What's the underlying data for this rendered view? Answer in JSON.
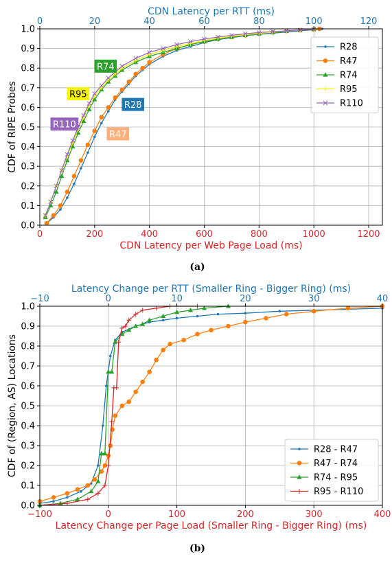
{
  "colors": {
    "blue": "#1f77b4",
    "orange": "#ff7f0e",
    "green": "#2ca02c",
    "yellow": "#f5f500",
    "purple": "#9467bd",
    "red": "#d62728",
    "lightorange": "#ffb07a",
    "axis_bottom_text": "#d62728",
    "axis_top_text": "#1f77b4"
  },
  "panels": [
    {
      "caption": "(a)"
    },
    {
      "caption": "(b)"
    }
  ],
  "chart_data": [
    {
      "type": "line",
      "xlabel": "CDN Latency per Web Page Load (ms)",
      "x2label": "CDN Latency per RTT (ms)",
      "ylabel": "CDF of RIPE Probes",
      "xlim": [
        0,
        1250
      ],
      "x2lim": [
        0,
        125
      ],
      "ylim": [
        0,
        1.0
      ],
      "xticks": [
        "0",
        "200",
        "400",
        "600",
        "800",
        "1000",
        "1200"
      ],
      "x2ticks": [
        "0",
        "20",
        "40",
        "60",
        "80",
        "100",
        "120"
      ],
      "yticks": [
        "0.0",
        "0.1",
        "0.2",
        "0.3",
        "0.4",
        "0.5",
        "0.6",
        "0.7",
        "0.8",
        "0.9",
        "1.0"
      ],
      "grid": true,
      "legend": "right",
      "series": [
        {
          "name": "R28",
          "color": "#1f77b4",
          "marker": "dot",
          "points": [
            [
              25,
              0.01
            ],
            [
              50,
              0.04
            ],
            [
              75,
              0.08
            ],
            [
              100,
              0.14
            ],
            [
              125,
              0.21
            ],
            [
              150,
              0.29
            ],
            [
              175,
              0.37
            ],
            [
              200,
              0.45
            ],
            [
              225,
              0.52
            ],
            [
              250,
              0.58
            ],
            [
              275,
              0.64
            ],
            [
              300,
              0.68
            ],
            [
              325,
              0.72
            ],
            [
              350,
              0.76
            ],
            [
              375,
              0.79
            ],
            [
              400,
              0.82
            ],
            [
              450,
              0.86
            ],
            [
              500,
              0.89
            ],
            [
              550,
              0.91
            ],
            [
              600,
              0.93
            ],
            [
              650,
              0.945
            ],
            [
              700,
              0.955
            ],
            [
              750,
              0.965
            ],
            [
              800,
              0.972
            ],
            [
              850,
              0.978
            ],
            [
              900,
              0.984
            ],
            [
              950,
              0.99
            ],
            [
              1000,
              0.995
            ],
            [
              1030,
              1.0
            ]
          ]
        },
        {
          "name": "R47",
          "color": "#ff7f0e",
          "marker": "circle",
          "points": [
            [
              25,
              0.01
            ],
            [
              50,
              0.05
            ],
            [
              75,
              0.1
            ],
            [
              100,
              0.17
            ],
            [
              125,
              0.25
            ],
            [
              150,
              0.33
            ],
            [
              175,
              0.41
            ],
            [
              200,
              0.48
            ],
            [
              225,
              0.55
            ],
            [
              250,
              0.6
            ],
            [
              275,
              0.65
            ],
            [
              300,
              0.69
            ],
            [
              325,
              0.73
            ],
            [
              350,
              0.77
            ],
            [
              375,
              0.8
            ],
            [
              400,
              0.83
            ],
            [
              450,
              0.87
            ],
            [
              500,
              0.9
            ],
            [
              550,
              0.92
            ],
            [
              600,
              0.935
            ],
            [
              650,
              0.948
            ],
            [
              700,
              0.958
            ],
            [
              750,
              0.967
            ],
            [
              800,
              0.975
            ],
            [
              850,
              0.982
            ],
            [
              900,
              0.988
            ],
            [
              950,
              0.993
            ],
            [
              1000,
              0.997
            ],
            [
              1020,
              1.0
            ]
          ]
        },
        {
          "name": "R74",
          "color": "#2ca02c",
          "marker": "triangle",
          "points": [
            [
              20,
              0.04
            ],
            [
              40,
              0.1
            ],
            [
              60,
              0.17
            ],
            [
              80,
              0.25
            ],
            [
              100,
              0.33
            ],
            [
              120,
              0.4
            ],
            [
              140,
              0.47
            ],
            [
              160,
              0.53
            ],
            [
              180,
              0.59
            ],
            [
              200,
              0.64
            ],
            [
              225,
              0.69
            ],
            [
              250,
              0.73
            ],
            [
              275,
              0.76
            ],
            [
              300,
              0.79
            ],
            [
              350,
              0.83
            ],
            [
              400,
              0.86
            ],
            [
              450,
              0.88
            ],
            [
              500,
              0.9
            ],
            [
              550,
              0.92
            ],
            [
              600,
              0.935
            ],
            [
              650,
              0.948
            ],
            [
              700,
              0.958
            ],
            [
              750,
              0.967
            ],
            [
              800,
              0.975
            ],
            [
              850,
              0.982
            ],
            [
              900,
              0.988
            ],
            [
              950,
              0.993
            ],
            [
              1000,
              0.997
            ]
          ]
        },
        {
          "name": "R95",
          "color": "#f5f500",
          "marker": "plus",
          "points": [
            [
              20,
              0.05
            ],
            [
              40,
              0.12
            ],
            [
              60,
              0.2
            ],
            [
              80,
              0.28
            ],
            [
              100,
              0.35
            ],
            [
              120,
              0.42
            ],
            [
              140,
              0.49
            ],
            [
              160,
              0.55
            ],
            [
              180,
              0.61
            ],
            [
              200,
              0.66
            ],
            [
              225,
              0.7
            ],
            [
              250,
              0.74
            ],
            [
              275,
              0.77
            ],
            [
              300,
              0.8
            ],
            [
              350,
              0.84
            ],
            [
              400,
              0.87
            ],
            [
              450,
              0.89
            ],
            [
              500,
              0.91
            ],
            [
              550,
              0.925
            ],
            [
              600,
              0.94
            ],
            [
              650,
              0.952
            ],
            [
              700,
              0.962
            ],
            [
              750,
              0.97
            ],
            [
              800,
              0.977
            ],
            [
              850,
              0.983
            ],
            [
              900,
              0.989
            ],
            [
              950,
              0.994
            ],
            [
              1000,
              0.998
            ]
          ]
        },
        {
          "name": "R110",
          "color": "#9467bd",
          "marker": "x",
          "points": [
            [
              20,
              0.05
            ],
            [
              40,
              0.12
            ],
            [
              60,
              0.2
            ],
            [
              80,
              0.28
            ],
            [
              100,
              0.36
            ],
            [
              120,
              0.43
            ],
            [
              140,
              0.5
            ],
            [
              160,
              0.56
            ],
            [
              180,
              0.62
            ],
            [
              200,
              0.67
            ],
            [
              225,
              0.71
            ],
            [
              250,
              0.75
            ],
            [
              275,
              0.78
            ],
            [
              300,
              0.81
            ],
            [
              350,
              0.85
            ],
            [
              400,
              0.88
            ],
            [
              450,
              0.9
            ],
            [
              500,
              0.92
            ],
            [
              550,
              0.935
            ],
            [
              600,
              0.948
            ],
            [
              650,
              0.958
            ],
            [
              700,
              0.967
            ],
            [
              750,
              0.975
            ],
            [
              800,
              0.981
            ],
            [
              850,
              0.986
            ],
            [
              900,
              0.99
            ],
            [
              950,
              0.994
            ],
            [
              1000,
              0.998
            ]
          ]
        }
      ],
      "annotations": [
        {
          "text": "R74",
          "x": 240,
          "y": 0.81,
          "bg": "#2ca02c",
          "fg": "#ffffff"
        },
        {
          "text": "R95",
          "x": 140,
          "y": 0.67,
          "bg": "#f5f500",
          "fg": "#000000"
        },
        {
          "text": "R28",
          "x": 340,
          "y": 0.615,
          "bg": "#1f77b4",
          "fg": "#ffffff"
        },
        {
          "text": "R110",
          "x": 90,
          "y": 0.515,
          "bg": "#9467bd",
          "fg": "#ffffff"
        },
        {
          "text": "R47",
          "x": 285,
          "y": 0.465,
          "bg": "#ffb07a",
          "fg": "#ffffff"
        }
      ]
    },
    {
      "type": "line",
      "xlabel": "Latency Change per Page Load (Smaller Ring - Bigger Ring) (ms)",
      "x2label": "Latency Change per RTT (Smaller Ring - Bigger Ring) (ms)",
      "ylabel": "CDF of (Region, AS) Locations",
      "xlim": [
        -100,
        400
      ],
      "x2lim": [
        -10,
        40
      ],
      "ylim": [
        0,
        1.0
      ],
      "xticks": [
        "−100",
        "0",
        "100",
        "200",
        "300",
        "400"
      ],
      "x2ticks": [
        "−10",
        "0",
        "10",
        "20",
        "30",
        "40"
      ],
      "yticks": [
        "0.0",
        "0.1",
        "0.2",
        "0.3",
        "0.4",
        "0.5",
        "0.6",
        "0.7",
        "0.8",
        "0.9",
        "1.0"
      ],
      "grid": true,
      "legend": "lower right",
      "series": [
        {
          "name": "R28 - R47",
          "color": "#1f77b4",
          "marker": "dot",
          "points": [
            [
              -100,
              0.01
            ],
            [
              -80,
              0.02
            ],
            [
              -60,
              0.04
            ],
            [
              -40,
              0.07
            ],
            [
              -25,
              0.11
            ],
            [
              -15,
              0.2
            ],
            [
              -8,
              0.4
            ],
            [
              -3,
              0.6
            ],
            [
              3,
              0.75
            ],
            [
              10,
              0.83
            ],
            [
              20,
              0.87
            ],
            [
              40,
              0.9
            ],
            [
              60,
              0.92
            ],
            [
              80,
              0.93
            ],
            [
              100,
              0.94
            ],
            [
              130,
              0.95
            ],
            [
              160,
              0.96
            ],
            [
              200,
              0.965
            ],
            [
              250,
              0.975
            ],
            [
              300,
              0.98
            ],
            [
              350,
              0.985
            ],
            [
              400,
              0.99
            ]
          ]
        },
        {
          "name": "R47 - R74",
          "color": "#ff7f0e",
          "marker": "circle",
          "points": [
            [
              -100,
              0.02
            ],
            [
              -80,
              0.04
            ],
            [
              -60,
              0.06
            ],
            [
              -45,
              0.08
            ],
            [
              -30,
              0.1
            ],
            [
              -20,
              0.13
            ],
            [
              -10,
              0.17
            ],
            [
              -5,
              0.2
            ],
            [
              0,
              0.25
            ],
            [
              3,
              0.3
            ],
            [
              6,
              0.38
            ],
            [
              10,
              0.45
            ],
            [
              20,
              0.5
            ],
            [
              30,
              0.52
            ],
            [
              40,
              0.57
            ],
            [
              50,
              0.62
            ],
            [
              60,
              0.67
            ],
            [
              70,
              0.73
            ],
            [
              80,
              0.78
            ],
            [
              90,
              0.81
            ],
            [
              110,
              0.83
            ],
            [
              130,
              0.86
            ],
            [
              150,
              0.88
            ],
            [
              175,
              0.9
            ],
            [
              200,
              0.92
            ],
            [
              230,
              0.94
            ],
            [
              260,
              0.96
            ],
            [
              300,
              0.975
            ],
            [
              350,
              0.99
            ],
            [
              400,
              1.0
            ]
          ]
        },
        {
          "name": "R74 - R95",
          "color": "#2ca02c",
          "marker": "triangle",
          "points": [
            [
              -100,
              0.0
            ],
            [
              -70,
              0.01
            ],
            [
              -45,
              0.03
            ],
            [
              -25,
              0.07
            ],
            [
              -15,
              0.12
            ],
            [
              -10,
              0.26
            ],
            [
              -5,
              0.26
            ],
            [
              0,
              0.67
            ],
            [
              5,
              0.67
            ],
            [
              10,
              0.82
            ],
            [
              20,
              0.86
            ],
            [
              30,
              0.88
            ],
            [
              40,
              0.9
            ],
            [
              50,
              0.91
            ],
            [
              60,
              0.93
            ],
            [
              80,
              0.95
            ],
            [
              100,
              0.97
            ],
            [
              120,
              0.98
            ],
            [
              140,
              0.99
            ],
            [
              175,
              1.0
            ]
          ]
        },
        {
          "name": "R95 - R110",
          "color": "#d62728",
          "marker": "plus",
          "points": [
            [
              -100,
              0.0
            ],
            [
              -60,
              0.01
            ],
            [
              -30,
              0.03
            ],
            [
              -15,
              0.06
            ],
            [
              -5,
              0.1
            ],
            [
              0,
              0.2
            ],
            [
              5,
              0.42
            ],
            [
              8,
              0.59
            ],
            [
              12,
              0.59
            ],
            [
              15,
              0.82
            ],
            [
              20,
              0.89
            ],
            [
              25,
              0.9
            ],
            [
              30,
              0.93
            ],
            [
              40,
              0.96
            ],
            [
              50,
              0.98
            ],
            [
              70,
              0.99
            ],
            [
              90,
              1.0
            ],
            [
              130,
              1.0
            ]
          ]
        }
      ]
    }
  ]
}
